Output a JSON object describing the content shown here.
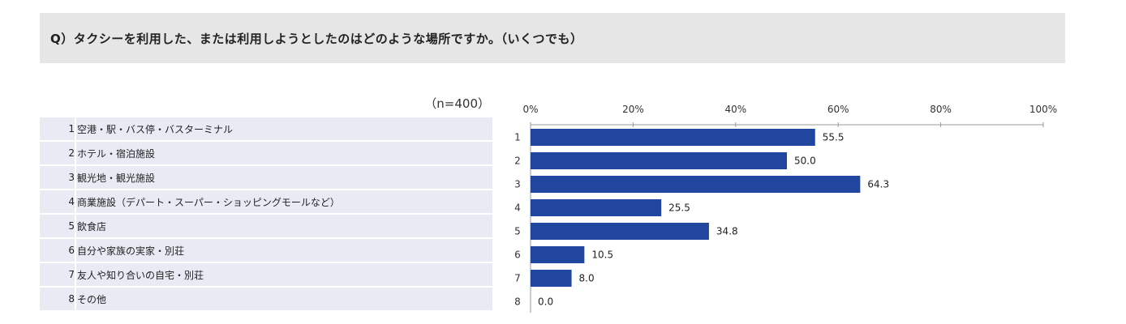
{
  "question": "Q）タクシーを利用した、または利用しようとしたのはどのような場所ですか。（いくつでも）",
  "sample_size": "（n=400）",
  "chart_data": {
    "type": "bar",
    "orientation": "horizontal",
    "categories": [
      "空港・駅・バス停・バスターミナル",
      "ホテル・宿泊施設",
      "観光地・観光施設",
      "商業施設（デパート・スーパー・ショッピングモールなど）",
      "飲食店",
      "自分や家族の実家・別荘",
      "友人や知り合いの自宅・別荘",
      "その他"
    ],
    "category_numbers": [
      "1",
      "2",
      "3",
      "4",
      "5",
      "6",
      "7",
      "8"
    ],
    "values": [
      55.5,
      50.0,
      64.3,
      25.5,
      34.8,
      10.5,
      8.0,
      0.0
    ],
    "value_labels": [
      "55.5",
      "50.0",
      "64.3",
      "25.5",
      "34.8",
      "10.5",
      "8.0",
      "0.0"
    ],
    "xlim": [
      0,
      100
    ],
    "xticks": [
      "0%",
      "20%",
      "40%",
      "60%",
      "80%",
      "100%"
    ],
    "bar_color": "#2146a0",
    "grid": false
  }
}
